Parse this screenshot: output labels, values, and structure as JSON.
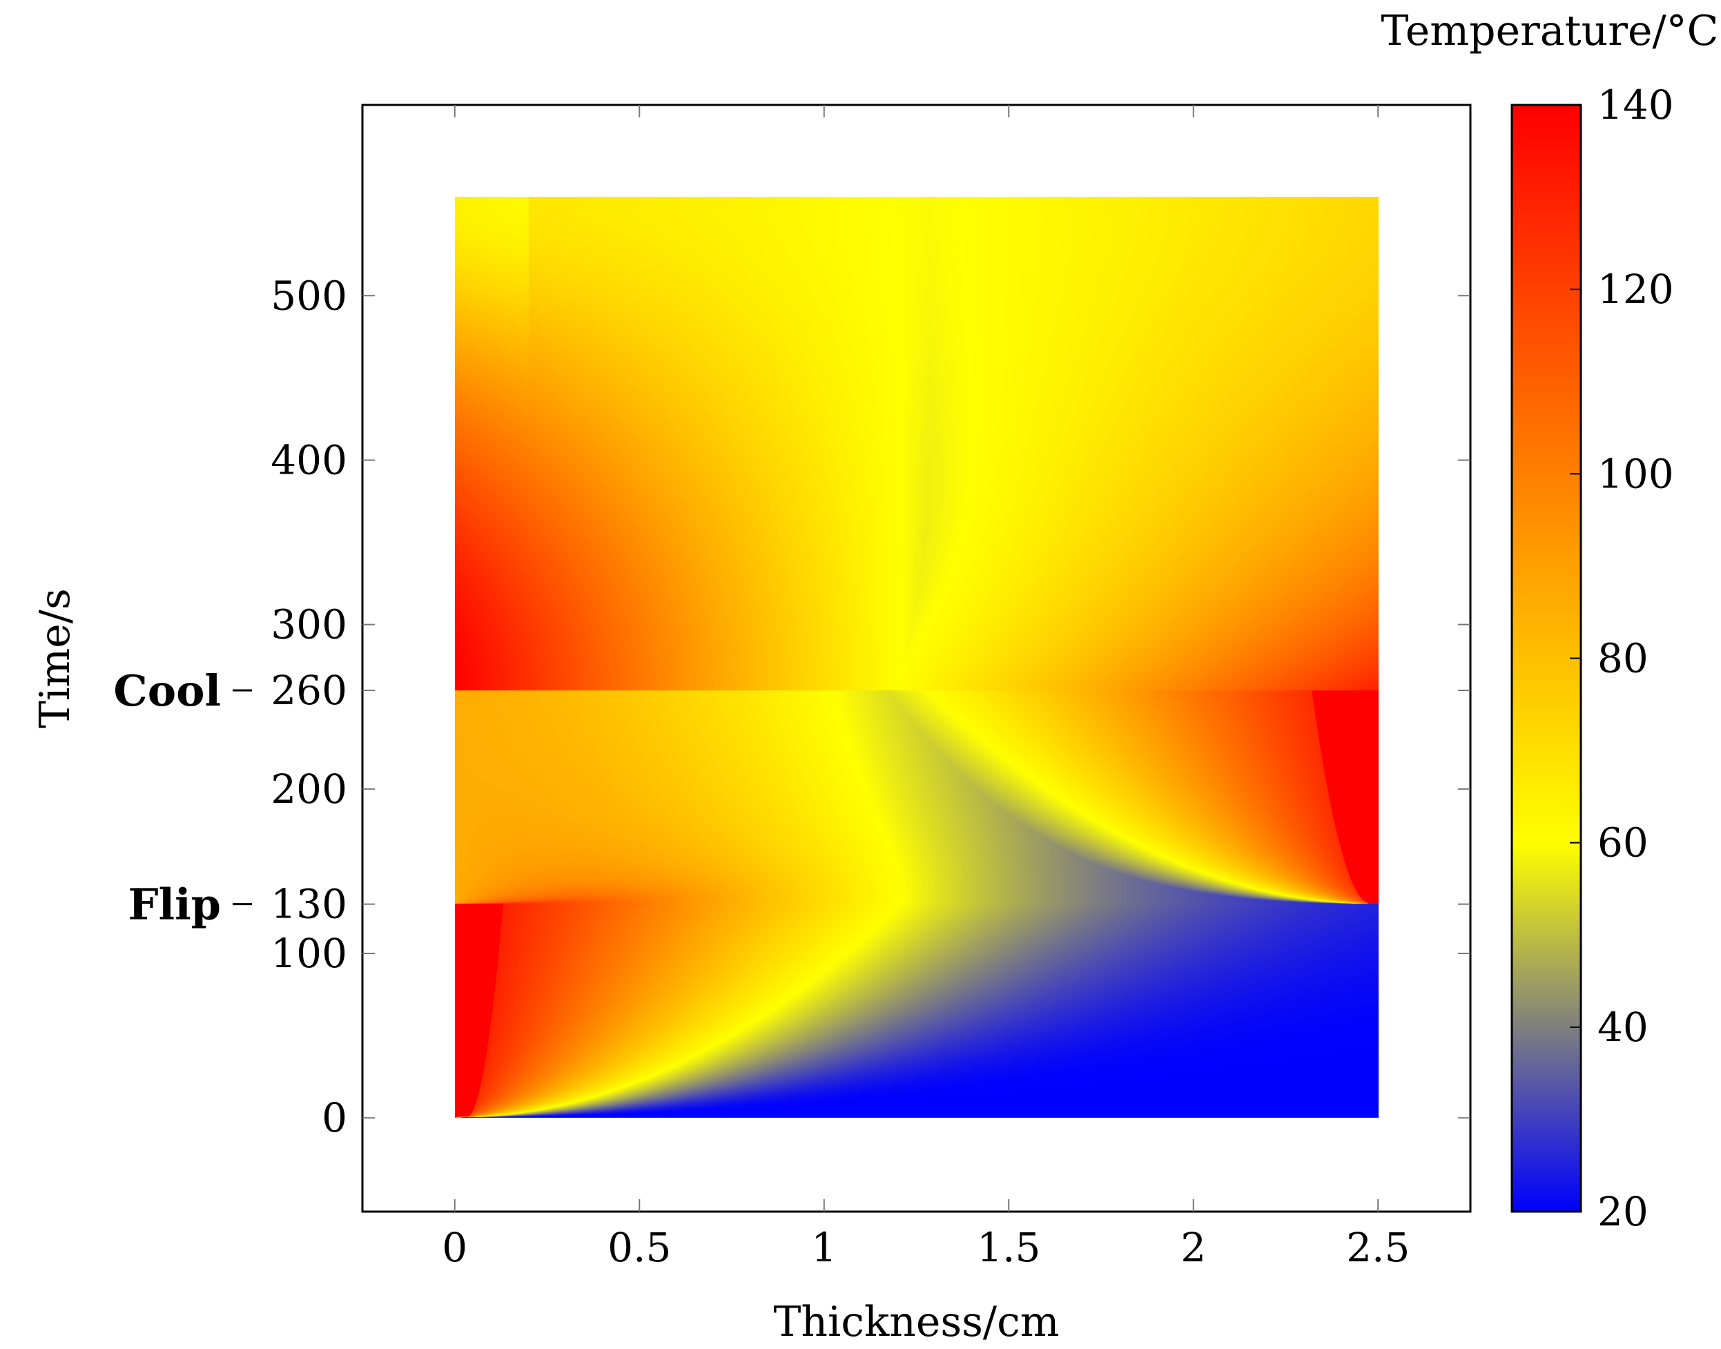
{
  "chart_data": {
    "type": "heatmap",
    "xlabel": "Thickness/cm",
    "ylabel": "Time/s",
    "xlim": [
      -0.25,
      2.75
    ],
    "ylim": [
      -57,
      616
    ],
    "x_ticks": [
      0,
      0.5,
      1,
      1.5,
      2,
      2.5
    ],
    "x_tick_labels": [
      "0",
      "0.5",
      "1",
      "1.5",
      "2",
      "2.5"
    ],
    "y_ticks": [
      0,
      100,
      130,
      200,
      260,
      300,
      400,
      500
    ],
    "y_tick_labels": [
      "0",
      "100",
      "130",
      "200",
      "260",
      "300",
      "400",
      "500"
    ],
    "data_extent": {
      "x": [
        0,
        2.5
      ],
      "y": [
        0,
        560
      ]
    },
    "annotations": [
      {
        "text": "Flip",
        "y": 130
      },
      {
        "text": "Cool",
        "y": 260
      }
    ],
    "colorbar": {
      "label": "Temperature/°C",
      "range": [
        20,
        140
      ],
      "ticks": [
        20,
        40,
        60,
        80,
        100,
        120,
        140
      ],
      "tick_labels": [
        "20",
        "40",
        "60",
        "80",
        "100",
        "120",
        "140"
      ],
      "colormap": [
        {
          "value": 20,
          "color": "#0000ff"
        },
        {
          "value": 60,
          "color": "#ffff00"
        },
        {
          "value": 100,
          "color": "#ff8000"
        },
        {
          "value": 140,
          "color": "#ff0000"
        }
      ]
    },
    "grid": false,
    "series": [
      {
        "values": [
          {
            "x": 0.05,
            "y": 60,
            "temp": 140
          },
          {
            "x": 0.05,
            "y": 120,
            "temp": 140
          },
          {
            "x": 0.3,
            "y": 60,
            "temp": 70
          },
          {
            "x": 1.5,
            "y": 50,
            "temp": 20
          },
          {
            "x": 2.2,
            "y": 100,
            "temp": 20
          },
          {
            "x": 1.4,
            "y": 200,
            "temp": 25
          },
          {
            "x": 1.35,
            "y": 250,
            "temp": 38
          },
          {
            "x": 2.45,
            "y": 200,
            "temp": 140
          },
          {
            "x": 2.2,
            "y": 300,
            "temp": 90
          },
          {
            "x": 0.2,
            "y": 200,
            "temp": 85
          },
          {
            "x": 0.6,
            "y": 300,
            "temp": 62
          },
          {
            "x": 0.05,
            "y": 530,
            "temp": 48
          },
          {
            "x": 1.2,
            "y": 450,
            "temp": 60
          },
          {
            "x": 2.4,
            "y": 530,
            "temp": 68
          }
        ]
      }
    ]
  }
}
